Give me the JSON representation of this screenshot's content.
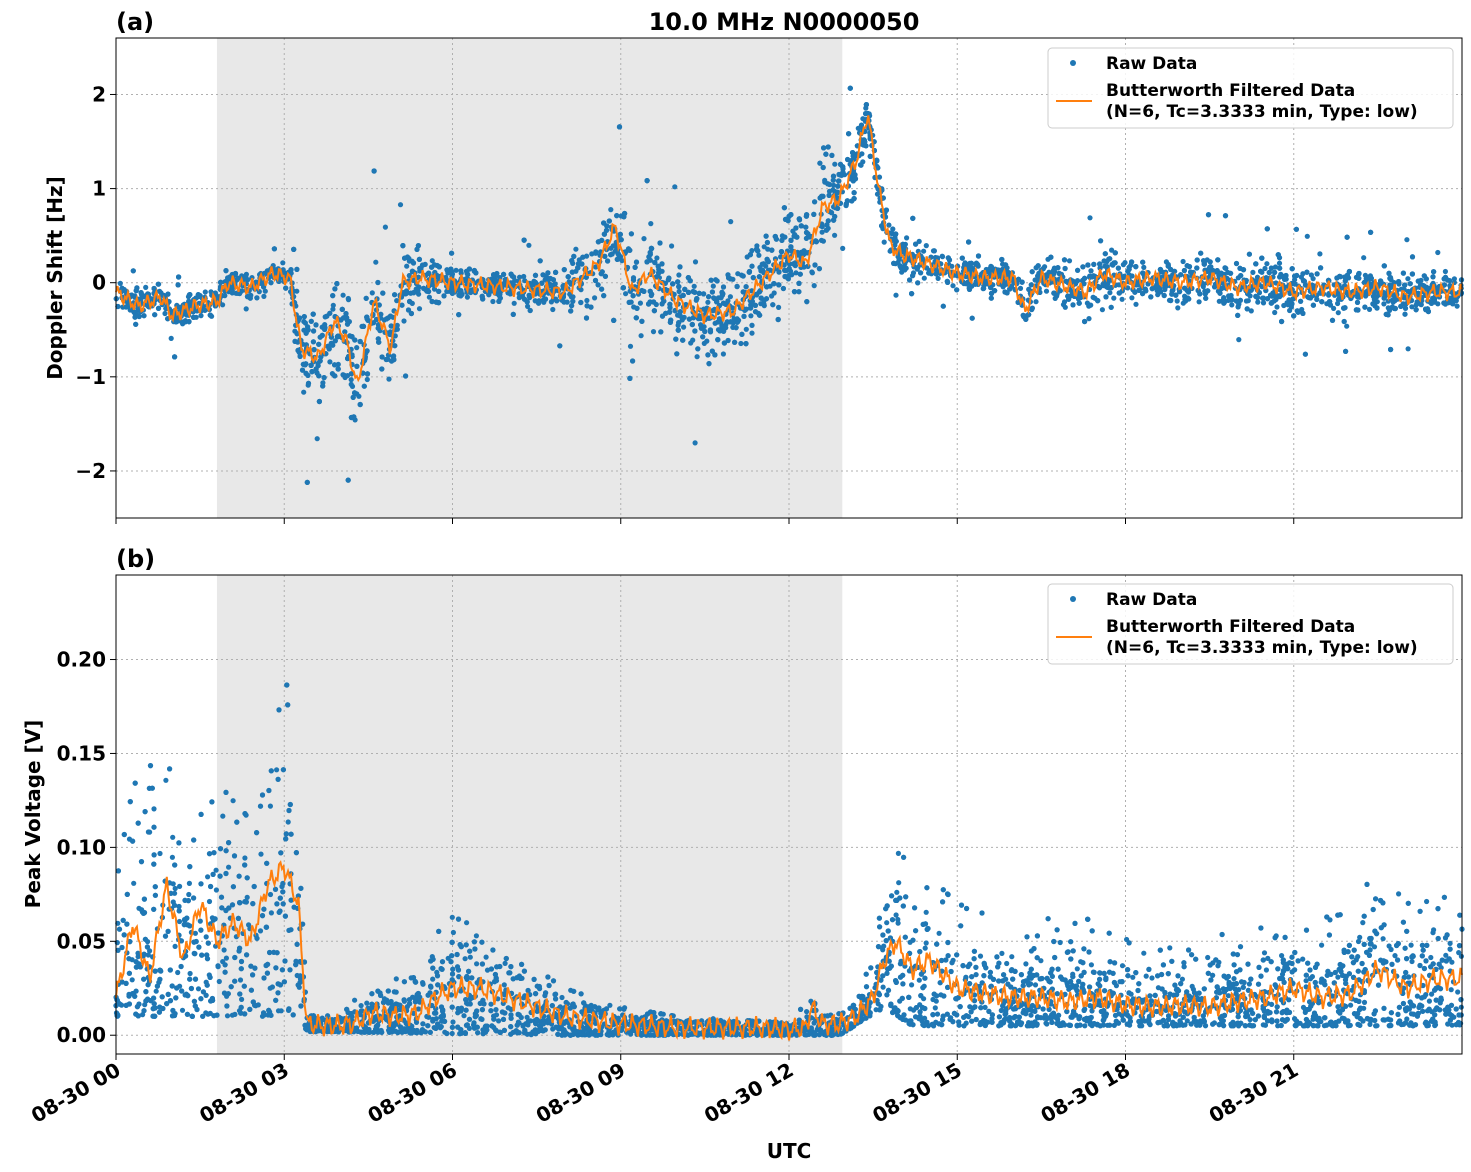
{
  "figure": {
    "title": "10.0 MHz N0000050",
    "xlabel": "UTC",
    "x_ticks": [
      "08-30 00",
      "08-30 03",
      "08-30 06",
      "08-30 09",
      "08-30 12",
      "08-30 15",
      "08-30 18",
      "08-30 21"
    ],
    "night_shading_hours": [
      1.8,
      12.95
    ],
    "colors": {
      "raw": "#1f77b4",
      "filtered": "#ff7f0e",
      "shade": "#e8e8e8",
      "grid": "#b0b0b0"
    },
    "legend": {
      "raw_label": "Raw Data",
      "filtered_label_line1": "Butterworth Filtered Data",
      "filtered_label_line2": "(N=6, Tc=3.3333 min, Type: low)"
    }
  },
  "chart_data": [
    {
      "type": "scatter",
      "panel": "(a)",
      "title": "10.0 MHz N0000050",
      "ylabel": "Doppler Shift [Hz]",
      "xlabel": "",
      "xlim_hours": [
        0,
        24
      ],
      "ylim": [
        -2.5,
        2.6
      ],
      "y_ticks": [
        -2,
        -1,
        0,
        1,
        2
      ],
      "y_tick_labels": [
        "−2",
        "−1",
        "0",
        "1",
        "2"
      ],
      "grid": true,
      "legend_position": "top-right",
      "series": [
        {
          "name": "Butterworth Filtered Data",
          "kind": "line",
          "x_hours": [
            0,
            0.4,
            0.8,
            1.0,
            1.4,
            1.8,
            2.0,
            2.4,
            2.8,
            3.1,
            3.3,
            3.6,
            3.9,
            4.1,
            4.3,
            4.6,
            4.9,
            5.1,
            5.4,
            6.0,
            7.0,
            8.0,
            8.6,
            8.9,
            9.2,
            9.5,
            10.0,
            10.5,
            11.0,
            11.5,
            12.0,
            12.3,
            12.6,
            12.9,
            13.2,
            13.4,
            13.6,
            13.8,
            14.0,
            14.5,
            15.0,
            15.5,
            16.0,
            16.2,
            16.5,
            17.0,
            17.3,
            17.6,
            18.0,
            18.5,
            19.0,
            19.5,
            20.0,
            20.5,
            21.0,
            21.5,
            22.0,
            22.5,
            23.0,
            23.5,
            24.0
          ],
          "y": [
            -0.1,
            -0.25,
            -0.15,
            -0.35,
            -0.25,
            -0.2,
            0.0,
            -0.05,
            0.1,
            0.05,
            -0.7,
            -0.8,
            -0.4,
            -0.6,
            -1.1,
            -0.2,
            -0.7,
            0.0,
            0.05,
            0.0,
            -0.05,
            -0.1,
            0.2,
            0.6,
            -0.1,
            0.1,
            -0.2,
            -0.35,
            -0.3,
            0.0,
            0.3,
            0.2,
            0.8,
            0.9,
            1.3,
            1.8,
            1.0,
            0.4,
            0.3,
            0.2,
            0.1,
            0.05,
            0.05,
            -0.3,
            0.05,
            -0.05,
            -0.1,
            0.1,
            0.0,
            0.05,
            0.0,
            0.05,
            -0.05,
            0.0,
            -0.1,
            -0.05,
            -0.1,
            -0.05,
            -0.15,
            -0.1,
            -0.1
          ]
        },
        {
          "name": "Raw Data",
          "kind": "scatter",
          "spread_x_hours": [
            0,
            1.0,
            1.8,
            3.0,
            3.3,
            4.3,
            5.4,
            6.0,
            7.0,
            8.0,
            8.6,
            9.5,
            10.5,
            11.5,
            12.3,
            12.9,
            13.4,
            14.0,
            15.0,
            16.0,
            17.0,
            17.6,
            18.5,
            20.0,
            21.0,
            22.5,
            24.0
          ],
          "spread_hz": [
            0.25,
            0.3,
            0.25,
            0.2,
            0.9,
            1.0,
            0.6,
            0.25,
            0.3,
            0.4,
            0.8,
            0.8,
            0.9,
            0.9,
            0.9,
            0.8,
            0.5,
            0.35,
            0.3,
            0.3,
            0.5,
            0.6,
            0.35,
            0.5,
            0.5,
            0.45,
            0.3
          ]
        }
      ]
    },
    {
      "type": "scatter",
      "panel": "(b)",
      "title": "",
      "ylabel": "Peak Voltage [V]",
      "xlabel": "UTC",
      "xlim_hours": [
        0,
        24
      ],
      "ylim": [
        -0.01,
        0.245
      ],
      "y_ticks": [
        0.0,
        0.05,
        0.1,
        0.15,
        0.2
      ],
      "y_tick_labels": [
        "0.00",
        "0.05",
        "0.10",
        "0.15",
        "0.20"
      ],
      "grid": true,
      "legend_position": "top-right",
      "series": [
        {
          "name": "Butterworth Filtered Data",
          "kind": "line",
          "x_hours": [
            0,
            0.3,
            0.6,
            0.9,
            1.2,
            1.5,
            1.8,
            2.1,
            2.4,
            2.7,
            3.0,
            3.25,
            3.4,
            3.8,
            4.2,
            4.6,
            5.0,
            5.4,
            5.7,
            6.0,
            6.5,
            7.0,
            7.5,
            8.0,
            8.5,
            9.0,
            9.5,
            10.0,
            10.5,
            11.0,
            11.5,
            12.0,
            12.3,
            12.4,
            12.6,
            12.9,
            13.2,
            13.5,
            13.7,
            13.9,
            14.2,
            14.5,
            15.0,
            15.5,
            16.0,
            16.5,
            17.0,
            17.5,
            18.0,
            18.5,
            19.0,
            19.5,
            20.0,
            20.5,
            21.0,
            21.5,
            22.0,
            22.5,
            23.0,
            23.5,
            24.0
          ],
          "y": [
            0.02,
            0.06,
            0.03,
            0.08,
            0.04,
            0.07,
            0.05,
            0.06,
            0.05,
            0.08,
            0.09,
            0.07,
            0.006,
            0.005,
            0.006,
            0.012,
            0.01,
            0.012,
            0.02,
            0.025,
            0.025,
            0.02,
            0.015,
            0.01,
            0.008,
            0.006,
            0.005,
            0.004,
            0.004,
            0.004,
            0.004,
            0.003,
            0.004,
            0.015,
            0.006,
            0.006,
            0.01,
            0.02,
            0.04,
            0.05,
            0.035,
            0.04,
            0.025,
            0.022,
            0.02,
            0.02,
            0.018,
            0.02,
            0.016,
            0.015,
            0.016,
            0.015,
            0.018,
            0.02,
            0.025,
            0.02,
            0.022,
            0.035,
            0.025,
            0.03,
            0.03
          ]
        },
        {
          "name": "Raw Data",
          "kind": "scatter",
          "upper_x_hours": [
            0,
            0.5,
            1.0,
            1.5,
            2.0,
            2.5,
            3.0,
            3.25,
            3.4,
            4.0,
            4.5,
            5.0,
            5.5,
            6.0,
            6.5,
            7.0,
            7.5,
            8.0,
            9.0,
            10.0,
            11.0,
            12.0,
            12.4,
            12.6,
            13.0,
            13.5,
            13.8,
            14.5,
            15.0,
            16.0,
            17.0,
            18.0,
            19.0,
            20.0,
            21.0,
            22.0,
            22.5,
            23.0,
            24.0
          ],
          "upper_v": [
            0.11,
            0.16,
            0.14,
            0.12,
            0.13,
            0.11,
            0.19,
            0.17,
            0.01,
            0.012,
            0.025,
            0.03,
            0.045,
            0.07,
            0.05,
            0.04,
            0.035,
            0.025,
            0.015,
            0.01,
            0.008,
            0.007,
            0.02,
            0.01,
            0.012,
            0.04,
            0.1,
            0.085,
            0.07,
            0.06,
            0.065,
            0.055,
            0.05,
            0.055,
            0.06,
            0.065,
            0.09,
            0.07,
            0.075
          ],
          "lower_x_hours": [
            0,
            3.25,
            3.4,
            8.0,
            12.9,
            13.7,
            14.2,
            24.0
          ],
          "lower_v": [
            0.01,
            0.01,
            0.002,
            0.0,
            0.0,
            0.015,
            0.005,
            0.005
          ]
        }
      ]
    }
  ]
}
